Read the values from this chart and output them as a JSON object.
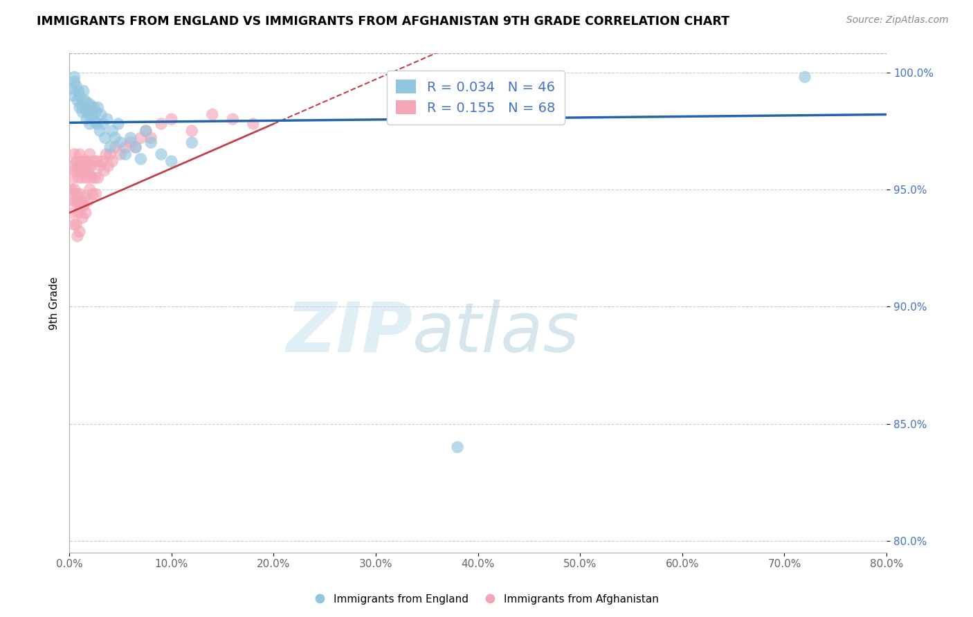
{
  "title": "IMMIGRANTS FROM ENGLAND VS IMMIGRANTS FROM AFGHANISTAN 9TH GRADE CORRELATION CHART",
  "source": "Source: ZipAtlas.com",
  "ylabel": "9th Grade",
  "legend_england": "Immigrants from England",
  "legend_afghanistan": "Immigrants from Afghanistan",
  "R_england": 0.034,
  "N_england": 46,
  "R_afghanistan": 0.155,
  "N_afghanistan": 68,
  "color_england": "#92c5de",
  "color_afghanistan": "#f4a6b8",
  "color_england_line": "#2166ac",
  "color_afghanistan_line": "#c0404a",
  "xlim": [
    0.0,
    0.8
  ],
  "ylim": [
    0.795,
    1.008
  ],
  "xticks": [
    0.0,
    0.1,
    0.2,
    0.3,
    0.4,
    0.5,
    0.6,
    0.7,
    0.8
  ],
  "yticks": [
    0.8,
    0.85,
    0.9,
    0.95,
    1.0
  ],
  "england_x": [
    0.004,
    0.005,
    0.005,
    0.007,
    0.008,
    0.009,
    0.01,
    0.01,
    0.012,
    0.013,
    0.014,
    0.015,
    0.016,
    0.017,
    0.018,
    0.019,
    0.02,
    0.021,
    0.022,
    0.024,
    0.025,
    0.026,
    0.027,
    0.028,
    0.03,
    0.031,
    0.033,
    0.035,
    0.037,
    0.04,
    0.042,
    0.045,
    0.048,
    0.05,
    0.055,
    0.06,
    0.065,
    0.07,
    0.075,
    0.08,
    0.09,
    0.1,
    0.12,
    0.38,
    0.72,
    0.002
  ],
  "england_y": [
    0.99,
    0.996,
    0.998,
    0.994,
    0.988,
    0.992,
    0.985,
    0.99,
    0.986,
    0.983,
    0.992,
    0.988,
    0.984,
    0.98,
    0.987,
    0.982,
    0.978,
    0.986,
    0.982,
    0.985,
    0.979,
    0.983,
    0.978,
    0.985,
    0.975,
    0.982,
    0.978,
    0.972,
    0.98,
    0.968,
    0.975,
    0.972,
    0.978,
    0.97,
    0.965,
    0.972,
    0.968,
    0.963,
    0.975,
    0.97,
    0.965,
    0.962,
    0.97,
    0.84,
    0.998,
    0.993
  ],
  "afghanistan_x": [
    0.002,
    0.003,
    0.003,
    0.004,
    0.004,
    0.005,
    0.005,
    0.005,
    0.006,
    0.006,
    0.007,
    0.007,
    0.007,
    0.008,
    0.008,
    0.008,
    0.009,
    0.009,
    0.01,
    0.01,
    0.01,
    0.011,
    0.011,
    0.012,
    0.012,
    0.013,
    0.013,
    0.014,
    0.014,
    0.015,
    0.015,
    0.016,
    0.016,
    0.017,
    0.018,
    0.018,
    0.019,
    0.02,
    0.02,
    0.021,
    0.022,
    0.023,
    0.024,
    0.025,
    0.026,
    0.027,
    0.028,
    0.03,
    0.032,
    0.034,
    0.036,
    0.038,
    0.04,
    0.042,
    0.045,
    0.05,
    0.055,
    0.06,
    0.065,
    0.07,
    0.075,
    0.08,
    0.09,
    0.1,
    0.12,
    0.14,
    0.16,
    0.18
  ],
  "afghanistan_y": [
    0.95,
    0.96,
    0.94,
    0.955,
    0.945,
    0.965,
    0.95,
    0.935,
    0.958,
    0.945,
    0.962,
    0.948,
    0.935,
    0.96,
    0.945,
    0.93,
    0.955,
    0.94,
    0.965,
    0.948,
    0.932,
    0.958,
    0.942,
    0.962,
    0.945,
    0.955,
    0.938,
    0.96,
    0.943,
    0.962,
    0.947,
    0.958,
    0.94,
    0.955,
    0.962,
    0.945,
    0.958,
    0.965,
    0.95,
    0.96,
    0.955,
    0.948,
    0.962,
    0.955,
    0.948,
    0.962,
    0.955,
    0.96,
    0.962,
    0.958,
    0.965,
    0.96,
    0.965,
    0.962,
    0.968,
    0.965,
    0.968,
    0.97,
    0.968,
    0.972,
    0.975,
    0.972,
    0.978,
    0.98,
    0.975,
    0.982,
    0.98,
    0.978
  ]
}
